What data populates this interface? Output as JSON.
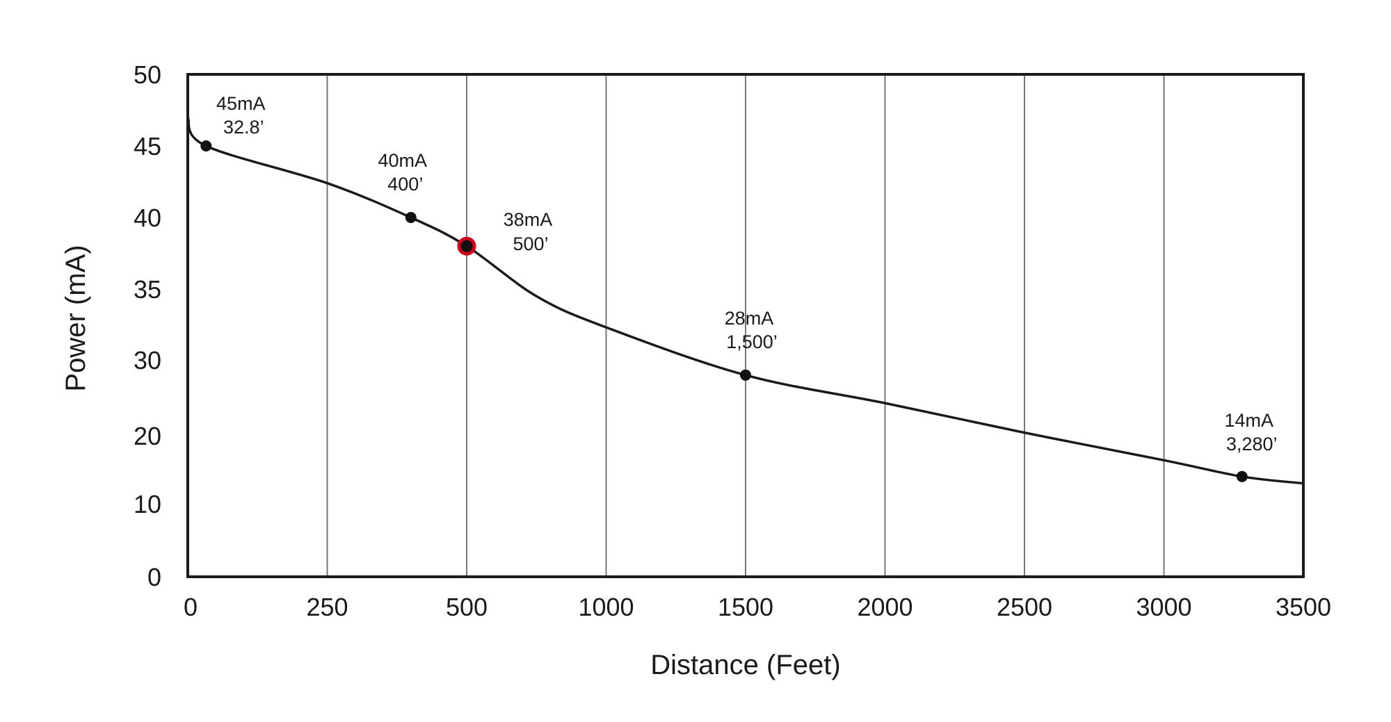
{
  "chart_data": {
    "type": "line",
    "xlabel": "Distance (Feet)",
    "ylabel": "Power (mA)",
    "x_ticks": [
      "0",
      "250",
      "500",
      "1000",
      "1500",
      "2000",
      "2500",
      "3000",
      "3500"
    ],
    "y_ticks": [
      "50",
      "45",
      "40",
      "35",
      "30",
      "20",
      "10",
      "0"
    ],
    "grid": "vertical",
    "curve": [
      {
        "x": "0",
        "y": 47
      },
      {
        "x": "32.8",
        "y": 45
      },
      {
        "x": "250",
        "y": 42.4
      },
      {
        "x": "400",
        "y": 40
      },
      {
        "x": "500",
        "y": 38
      },
      {
        "x": "750",
        "y": 34.5
      },
      {
        "x": "1000",
        "y": 32.3
      },
      {
        "x": "1500",
        "y": 28
      },
      {
        "x": "2000",
        "y": 24.3
      },
      {
        "x": "2500",
        "y": 20.4
      },
      {
        "x": "3000",
        "y": 16.4
      },
      {
        "x": "3280",
        "y": 14
      },
      {
        "x": "3500",
        "y": 13
      }
    ],
    "points": [
      {
        "x": "32.8",
        "y": 45,
        "label_current": "45mA",
        "label_distance": "32.8’",
        "highlight": false
      },
      {
        "x": "400",
        "y": 40,
        "label_current": "40mA",
        "label_distance": "400’",
        "highlight": false
      },
      {
        "x": "500",
        "y": 38,
        "label_current": "38mA",
        "label_distance": "500’",
        "highlight": true
      },
      {
        "x": "1500",
        "y": 28,
        "label_current": "28mA",
        "label_distance": "1,500’",
        "highlight": false
      },
      {
        "x": "3280",
        "y": 14,
        "label_current": "14mA",
        "label_distance": "3,280’",
        "highlight": false
      }
    ],
    "colors": {
      "line": "#1a1a1a",
      "grid": "#777777",
      "highlight": "#d0021b"
    }
  }
}
